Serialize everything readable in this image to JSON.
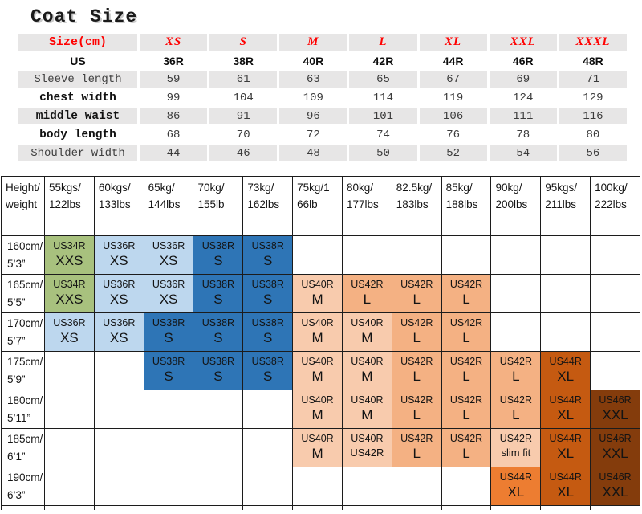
{
  "title": "Coat Size",
  "colors": {
    "accent_red": "#FF0000",
    "band_gray": "#E7E6E6",
    "cell_colors": {
      "green": "#A8C17E",
      "lightblue": "#BDD7EE",
      "blue": "#2E75B6",
      "peach": "#F8CBAD",
      "orange": "#F4B183",
      "darkorange": "#C55A11",
      "brightorange": "#ED7D31",
      "brown": "#843C0C"
    }
  },
  "size_table": {
    "header": [
      "Size(cm)",
      "XS",
      "S",
      "M",
      "L",
      "XL",
      "XXL",
      "XXXL"
    ],
    "rows": [
      {
        "label": "US",
        "cls": "us",
        "values": [
          "36R",
          "38R",
          "40R",
          "42R",
          "44R",
          "46R",
          "48R"
        ]
      },
      {
        "label": "Sleeve length",
        "cls": "reg",
        "values": [
          "59",
          "61",
          "63",
          "65",
          "67",
          "69",
          "71"
        ]
      },
      {
        "label": "chest width",
        "cls": "bold",
        "values": [
          "99",
          "104",
          "109",
          "114",
          "119",
          "124",
          "129"
        ]
      },
      {
        "label": "middle waist",
        "cls": "bold",
        "values": [
          "86",
          "91",
          "96",
          "101",
          "106",
          "111",
          "116"
        ]
      },
      {
        "label": "body length",
        "cls": "bold",
        "values": [
          "68",
          "70",
          "72",
          "74",
          "76",
          "78",
          "80"
        ]
      },
      {
        "label": "Shoulder width",
        "cls": "reg",
        "values": [
          "44",
          "46",
          "48",
          "50",
          "52",
          "54",
          "56"
        ]
      }
    ]
  },
  "fit_table": {
    "corner": "Height/\nweight",
    "columns": [
      "55kgs/\n122lbs",
      "60kgs/\n133lbs",
      "65kg/\n144lbs",
      "70kg/\n155lb",
      "73kg/\n162lbs",
      "75kg/1\n66lb",
      "80kg/\n177lbs",
      "82.5kg/\n183lbs",
      "85kg/\n188lbs",
      "90kg/\n200lbs",
      "95kgs/\n211lbs",
      "100kg/\n222lbs"
    ],
    "rows": [
      {
        "height": "160cm/\n5’3”",
        "cells": [
          {
            "c": "green",
            "l1": "US34R",
            "l2": "XXS"
          },
          {
            "c": "lightblue",
            "l1": "US36R",
            "l2": "XS"
          },
          {
            "c": "lightblue",
            "l1": "US36R",
            "l2": "XS"
          },
          {
            "c": "blue",
            "l1": "US38R",
            "l2": "S"
          },
          {
            "c": "blue",
            "l1": "US38R",
            "l2": "S"
          },
          null,
          null,
          null,
          null,
          null,
          null,
          null
        ]
      },
      {
        "height": "165cm/\n5’5”",
        "cells": [
          {
            "c": "green",
            "l1": "US34R",
            "l2": "XXS"
          },
          {
            "c": "lightblue",
            "l1": "US36R",
            "l2": "XS"
          },
          {
            "c": "lightblue",
            "l1": "US36R",
            "l2": "XS"
          },
          {
            "c": "blue",
            "l1": "US38R",
            "l2": "S"
          },
          {
            "c": "blue",
            "l1": "US38R",
            "l2": "S"
          },
          {
            "c": "peach",
            "l1": "US40R",
            "l2": "M"
          },
          {
            "c": "orange",
            "l1": "US42R",
            "l2": "L"
          },
          {
            "c": "orange",
            "l1": "US42R",
            "l2": "L"
          },
          {
            "c": "orange",
            "l1": "US42R",
            "l2": "L"
          },
          null,
          null,
          null
        ]
      },
      {
        "height": "170cm/\n5’7”",
        "cells": [
          {
            "c": "lightblue",
            "l1": "US36R",
            "l2": "XS"
          },
          {
            "c": "lightblue",
            "l1": "US36R",
            "l2": "XS"
          },
          {
            "c": "blue",
            "l1": "US38R",
            "l2": "S"
          },
          {
            "c": "blue",
            "l1": "US38R",
            "l2": "S"
          },
          {
            "c": "blue",
            "l1": "US38R",
            "l2": "S"
          },
          {
            "c": "peach",
            "l1": "US40R",
            "l2": "M"
          },
          {
            "c": "peach",
            "l1": "US40R",
            "l2": "M"
          },
          {
            "c": "orange",
            "l1": "US42R",
            "l2": "L"
          },
          {
            "c": "orange",
            "l1": "US42R",
            "l2": "L"
          },
          null,
          null,
          null
        ]
      },
      {
        "height": "175cm/\n5’9”",
        "cells": [
          null,
          null,
          {
            "c": "blue",
            "l1": "US38R",
            "l2": "S"
          },
          {
            "c": "blue",
            "l1": "US38R",
            "l2": "S"
          },
          {
            "c": "blue",
            "l1": "US38R",
            "l2": "S"
          },
          {
            "c": "peach",
            "l1": "US40R",
            "l2": "M"
          },
          {
            "c": "peach",
            "l1": "US40R",
            "l2": "M"
          },
          {
            "c": "orange",
            "l1": "US42R",
            "l2": "L"
          },
          {
            "c": "orange",
            "l1": "US42R",
            "l2": "L"
          },
          {
            "c": "orange",
            "l1": "US42R",
            "l2": "L"
          },
          {
            "c": "darkorange",
            "l1": "US44R",
            "l2": "XL"
          },
          null
        ]
      },
      {
        "height": "180cm/\n5’11”",
        "cells": [
          null,
          null,
          null,
          null,
          null,
          {
            "c": "peach",
            "l1": "US40R",
            "l2": "M"
          },
          {
            "c": "peach",
            "l1": "US40R",
            "l2": "M"
          },
          {
            "c": "orange",
            "l1": "US42R",
            "l2": "L"
          },
          {
            "c": "orange",
            "l1": "US42R",
            "l2": "L"
          },
          {
            "c": "orange",
            "l1": "US42R",
            "l2": "L"
          },
          {
            "c": "darkorange",
            "l1": "US44R",
            "l2": "XL"
          },
          {
            "c": "brown",
            "l1": "US46R",
            "l2": "XXL"
          }
        ]
      },
      {
        "height": "185cm/\n6’1”",
        "cells": [
          null,
          null,
          null,
          null,
          null,
          {
            "c": "peach",
            "l1": "US40R",
            "l2": "M"
          },
          {
            "c": "peach",
            "l1": "US40R",
            "l2": "US42R",
            "small": true
          },
          {
            "c": "orange",
            "l1": "US42R",
            "l2": "L"
          },
          {
            "c": "orange",
            "l1": "US42R",
            "l2": "L"
          },
          {
            "c": "peach",
            "l1": "US42R",
            "l2": "slim fit",
            "small": true
          },
          {
            "c": "darkorange",
            "l1": "US44R",
            "l2": "XL"
          },
          {
            "c": "brown",
            "l1": "US46R",
            "l2": "XXL"
          }
        ]
      },
      {
        "height": "190cm/\n6’3”",
        "cells": [
          null,
          null,
          null,
          null,
          null,
          null,
          null,
          null,
          null,
          {
            "c": "brightorange",
            "l1": "US44R",
            "l2": "XL"
          },
          {
            "c": "darkorange",
            "l1": "US44R",
            "l2": "XL"
          },
          {
            "c": "brown",
            "l1": "US46R",
            "l2": "XXL"
          }
        ]
      }
    ]
  },
  "chart_data": [
    {
      "type": "table",
      "title": "Coat Size",
      "columns": [
        "Size(cm)",
        "XS",
        "S",
        "M",
        "L",
        "XL",
        "XXL",
        "XXXL"
      ],
      "rows": [
        [
          "US",
          "36R",
          "38R",
          "40R",
          "42R",
          "44R",
          "46R",
          "48R"
        ],
        [
          "Sleeve length",
          59,
          61,
          63,
          65,
          67,
          69,
          71
        ],
        [
          "chest width",
          99,
          104,
          109,
          114,
          119,
          124,
          129
        ],
        [
          "middle waist",
          86,
          91,
          96,
          101,
          106,
          111,
          116
        ],
        [
          "body length",
          68,
          70,
          72,
          74,
          76,
          78,
          80
        ],
        [
          "Shoulder width",
          44,
          46,
          48,
          50,
          52,
          54,
          56
        ]
      ]
    },
    {
      "type": "table",
      "title": "Height/weight size matrix",
      "columns": [
        "Height/weight",
        "55kgs/122lbs",
        "60kgs/133lbs",
        "65kg/144lbs",
        "70kg/155lb",
        "73kg/162lbs",
        "75kg/166lb",
        "80kg/177lbs",
        "82.5kg/183lbs",
        "85kg/188lbs",
        "90kg/200lbs",
        "95kgs/211lbs",
        "100kg/222lbs"
      ],
      "rows": [
        [
          "160cm/5’3”",
          "US34R XXS",
          "US36R XS",
          "US36R XS",
          "US38R S",
          "US38R S",
          "",
          "",
          "",
          "",
          "",
          "",
          ""
        ],
        [
          "165cm/5’5”",
          "US34R XXS",
          "US36R XS",
          "US36R XS",
          "US38R S",
          "US38R S",
          "US40R M",
          "US42R L",
          "US42R L",
          "US42R L",
          "",
          "",
          ""
        ],
        [
          "170cm/5’7”",
          "US36R XS",
          "US36R XS",
          "US38R S",
          "US38R S",
          "US38R S",
          "US40R M",
          "US40R M",
          "US42R L",
          "US42R L",
          "",
          "",
          ""
        ],
        [
          "175cm/5’9”",
          "",
          "",
          "US38R S",
          "US38R S",
          "US38R S",
          "US40R M",
          "US40R M",
          "US42R L",
          "US42R L",
          "US42R L",
          "US44R XL",
          ""
        ],
        [
          "180cm/5’11”",
          "",
          "",
          "",
          "",
          "",
          "US40R M",
          "US40R M",
          "US42R L",
          "US42R L",
          "US42R L",
          "US44R XL",
          "US46R XXL"
        ],
        [
          "185cm/6’1”",
          "",
          "",
          "",
          "",
          "",
          "US40R M",
          "US40R US42R",
          "US42R L",
          "US42R L",
          "US42R slim fit",
          "US44R XL",
          "US46R XXL"
        ],
        [
          "190cm/6’3”",
          "",
          "",
          "",
          "",
          "",
          "",
          "",
          "",
          "",
          "US44R XL",
          "US44R XL",
          "US46R XXL"
        ]
      ]
    }
  ]
}
